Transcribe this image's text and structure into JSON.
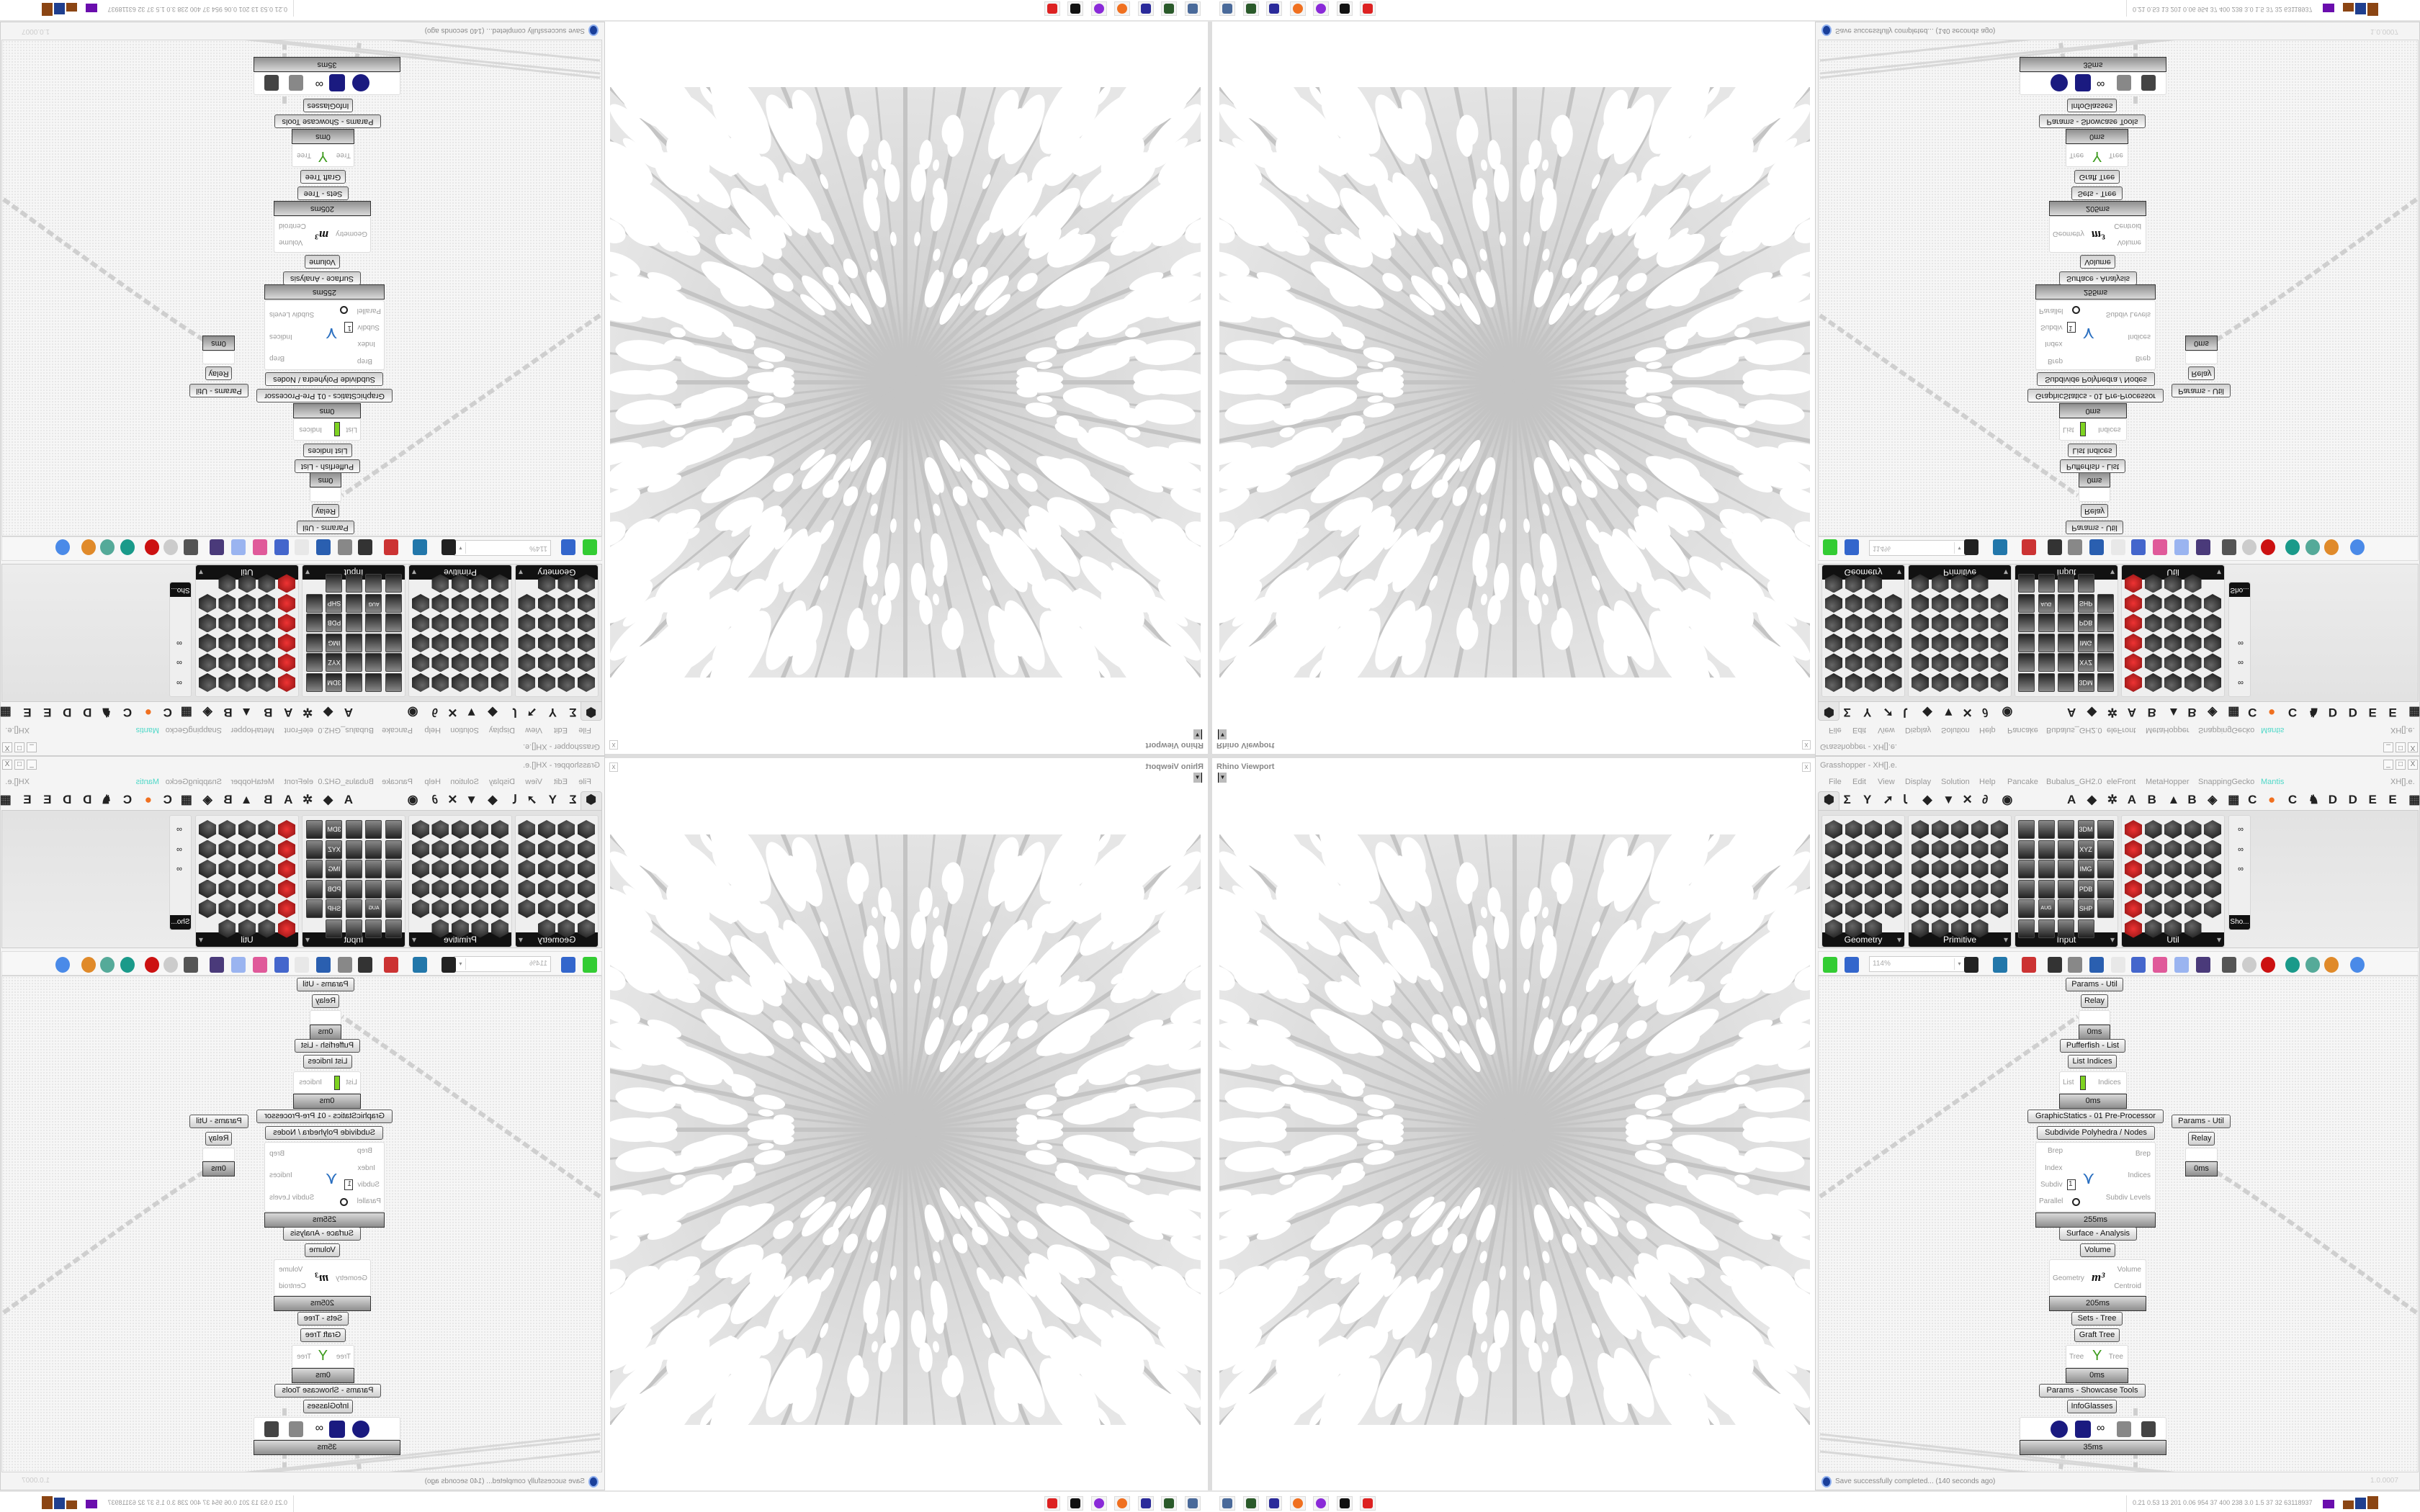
{
  "viewport": {
    "label": "Rhino Viewport",
    "close": "x"
  },
  "grasshopper": {
    "title": "Grasshopper - XH[].e.",
    "window_controls": [
      "_",
      "□",
      "X"
    ],
    "menu": [
      "File",
      "Edit",
      "View",
      "Display",
      "Solution",
      "Help",
      "Pancake",
      "Bubalus_GH2.0",
      "eleFront",
      "MetaHopper",
      "SnappingGecko",
      "Mantis"
    ],
    "menu_right": "XH[].e.",
    "accent_color": "#4fd8c8",
    "tabs_left": [
      "⬢",
      "Σ",
      "Y",
      "➚",
      "Ꙇ",
      "◆",
      "▼",
      "✕",
      "∂",
      "◉"
    ],
    "tabs_right": [
      "A",
      "◆",
      "✲",
      "A",
      "B",
      "▲",
      "B",
      "◈",
      "▦",
      "C",
      "●",
      "C",
      "♞",
      "D",
      "D",
      "E",
      "E",
      "▦"
    ],
    "panels": [
      {
        "label": "Geometry"
      },
      {
        "label": "Primitive"
      },
      {
        "label": "Input"
      },
      {
        "label": "Util"
      },
      {
        "label": "Sho..."
      }
    ],
    "input_icon_labels": [
      "3DM",
      "XYZ",
      "IMG",
      "PDB",
      "SHP",
      "AUG 20"
    ],
    "zoom": "114%",
    "nodes": {
      "params_util": "Params - Util",
      "relay": "Relay",
      "relay_time": "0ms",
      "pufferfish": "Pufferfish - List",
      "list_indices": "List Indices",
      "li_in": "List",
      "li_out": "Indices",
      "li_time": "0ms",
      "graphic_statics": "GraphicStatics - 01 Pre-Processor",
      "subdivide": "Subdivide Polyhedra / Nodes",
      "sd_in": [
        "Brep",
        "Index",
        "Subdiv",
        "Parallel"
      ],
      "sd_subdiv_value": "1",
      "sd_out": [
        "Brep",
        "Indices",
        "Subdiv Levels"
      ],
      "sd_time": "255ms",
      "params_util_2": "Params - Util",
      "relay_2": "Relay",
      "relay_2_time": "0ms",
      "surface_analysis": "Surface - Analysis",
      "volume": "Volume",
      "vol_in": "Geometry",
      "vol_glyph": "m³",
      "vol_out": [
        "Volume",
        "Centroid"
      ],
      "vol_time": "205ms",
      "sets_tree": "Sets - Tree",
      "graft_tree": "Graft Tree",
      "gt_in": "Tree",
      "gt_out": "Tree",
      "gt_time": "0ms",
      "showcase": "Params - Showcase Tools",
      "infoglasses": "InfoGlasses",
      "ig_time": "35ms"
    },
    "status": "Save successfully completed... (140 seconds ago)",
    "version": "1.0.0007"
  },
  "taskbar": {
    "apps": [
      "remote-desktop",
      "usb-device",
      "floppy-64",
      "firefox",
      "discord",
      "rhino",
      "settings-gear"
    ],
    "stats": "0.21 0.53  13  201 0.06 954  37  400  238  3.0  1.5  37  32  63118937"
  }
}
